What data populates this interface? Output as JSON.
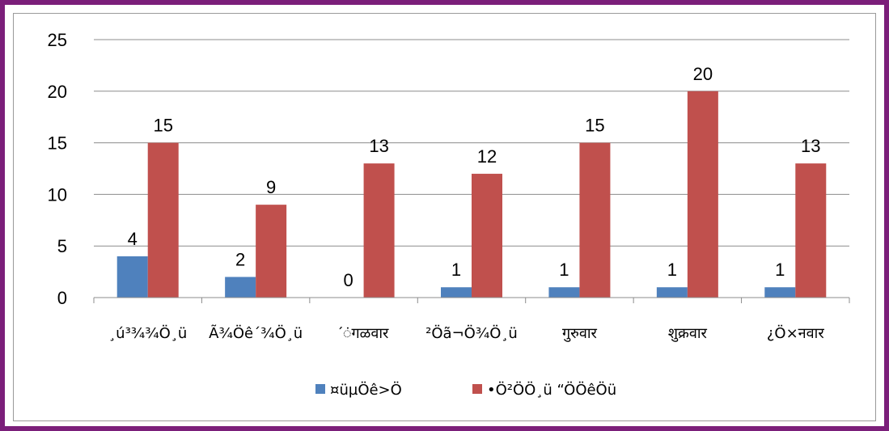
{
  "chart_data": {
    "type": "bar",
    "title": "",
    "xlabel": "",
    "ylabel": "",
    "ylim": [
      0,
      25
    ],
    "yticks": [
      0,
      5,
      10,
      15,
      20,
      25
    ],
    "grid": true,
    "legend_position": "bottom",
    "categories": [
      "¸ú³¾¾Ö¸ü",
      "Ã¾Öê´¾Ö¸ü",
      "´ंगळवार",
      "²Öã¬Ö¾Ö¸ü",
      "गुरुवार",
      "शुक्रवार",
      "¿Ö×नवार"
    ],
    "series": [
      {
        "name": "¤üµÖê>Ö",
        "color": "#4f81bd",
        "values": [
          4,
          2,
          0,
          1,
          1,
          1,
          1
        ]
      },
      {
        "name": "•Ö²ÖÖ¸ü “ÖÖêÖü",
        "color": "#c0504d",
        "values": [
          15,
          9,
          13,
          12,
          15,
          20,
          13
        ]
      }
    ]
  }
}
